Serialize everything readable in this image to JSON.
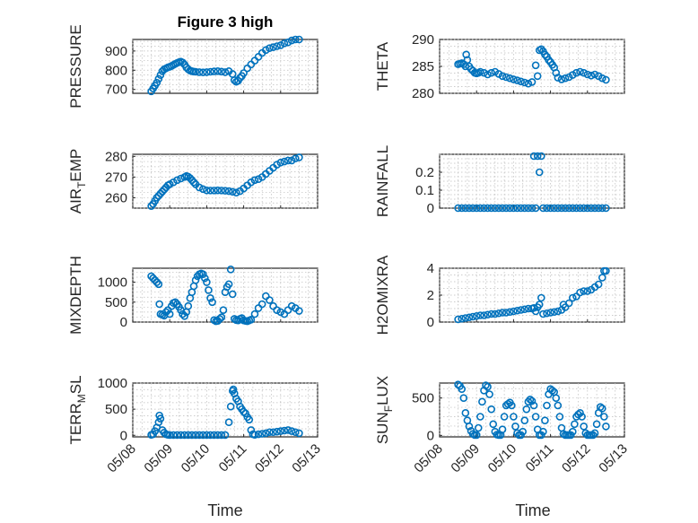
{
  "figure": {
    "title": "Figure 3 high",
    "marker_color": "#0072BD",
    "marker": "circle"
  },
  "chart_data": [
    {
      "type": "scatter",
      "title": "Figure 3 high",
      "ylabel": "PRESSURE",
      "ylim": [
        680,
        960
      ],
      "yticks": [
        700,
        800,
        900
      ],
      "xlim": [
        0,
        5
      ],
      "x": [
        0.5,
        0.55,
        0.6,
        0.65,
        0.7,
        0.75,
        0.8,
        0.85,
        0.9,
        0.95,
        1.0,
        1.05,
        1.1,
        1.15,
        1.2,
        1.25,
        1.3,
        1.35,
        1.4,
        1.45,
        1.5,
        1.55,
        1.6,
        1.65,
        1.7,
        1.8,
        1.9,
        2.0,
        2.1,
        2.2,
        2.3,
        2.4,
        2.5,
        2.6,
        2.7,
        2.75,
        2.8,
        2.85,
        2.9,
        2.95,
        3.0,
        3.1,
        3.2,
        3.3,
        3.4,
        3.5,
        3.6,
        3.7,
        3.8,
        3.9,
        4.0,
        4.1,
        4.2,
        4.3,
        4.4,
        4.5
      ],
      "y": [
        690,
        705,
        720,
        735,
        755,
        775,
        795,
        805,
        810,
        815,
        818,
        822,
        828,
        833,
        838,
        842,
        845,
        840,
        830,
        815,
        805,
        798,
        795,
        793,
        792,
        790,
        789,
        790,
        792,
        794,
        795,
        793,
        790,
        795,
        780,
        748,
        740,
        745,
        760,
        770,
        785,
        810,
        830,
        850,
        870,
        890,
        905,
        915,
        920,
        925,
        930,
        940,
        945,
        955,
        960,
        960
      ]
    },
    {
      "type": "scatter",
      "ylabel": "THETA",
      "ylim": [
        280,
        290
      ],
      "yticks": [
        280,
        285,
        290
      ],
      "xlim": [
        0,
        5
      ],
      "x": [
        0.5,
        0.55,
        0.6,
        0.65,
        0.7,
        0.72,
        0.75,
        0.8,
        0.85,
        0.9,
        0.95,
        1.0,
        1.05,
        1.1,
        1.2,
        1.3,
        1.4,
        1.5,
        1.6,
        1.7,
        1.8,
        1.9,
        2.0,
        2.1,
        2.2,
        2.3,
        2.4,
        2.5,
        2.6,
        2.65,
        2.7,
        2.75,
        2.8,
        2.85,
        2.9,
        2.95,
        3.0,
        3.05,
        3.1,
        3.15,
        3.2,
        3.3,
        3.4,
        3.5,
        3.6,
        3.7,
        3.8,
        3.9,
        4.0,
        4.1,
        4.2,
        4.3,
        4.4,
        4.5
      ],
      "y": [
        285.4,
        285.5,
        285.6,
        285.4,
        285.0,
        287.2,
        286.2,
        285.0,
        284.5,
        284.2,
        283.8,
        283.7,
        283.8,
        284.0,
        283.8,
        283.5,
        283.8,
        284.0,
        283.6,
        283.2,
        283.0,
        282.8,
        282.6,
        282.4,
        282.2,
        282.0,
        281.8,
        282.1,
        285.2,
        283.2,
        288.0,
        288.2,
        287.8,
        287.2,
        286.8,
        286.2,
        285.8,
        285.3,
        284.8,
        283.8,
        282.9,
        282.6,
        282.8,
        283.0,
        283.4,
        283.8,
        284.0,
        283.8,
        283.5,
        283.3,
        283.5,
        283.2,
        282.8,
        282.5
      ]
    },
    {
      "type": "scatter",
      "ylabel": "AIR_TEMP",
      "ylim": [
        255,
        281
      ],
      "yticks": [
        260,
        270,
        280
      ],
      "xlim": [
        0,
        5
      ],
      "x": [
        0.5,
        0.55,
        0.6,
        0.65,
        0.7,
        0.75,
        0.8,
        0.85,
        0.9,
        0.95,
        1.0,
        1.1,
        1.2,
        1.3,
        1.4,
        1.45,
        1.5,
        1.55,
        1.6,
        1.65,
        1.7,
        1.8,
        1.9,
        2.0,
        2.1,
        2.2,
        2.3,
        2.4,
        2.5,
        2.6,
        2.7,
        2.8,
        2.9,
        3.0,
        3.1,
        3.2,
        3.3,
        3.4,
        3.5,
        3.6,
        3.7,
        3.8,
        3.9,
        4.0,
        4.1,
        4.2,
        4.3,
        4.4,
        4.5
      ],
      "y": [
        256,
        257,
        258.5,
        260,
        261,
        262,
        263,
        264,
        265,
        266,
        266.5,
        267.5,
        268.5,
        269.3,
        270,
        270.5,
        270.2,
        269.5,
        268.5,
        267.5,
        266.5,
        265,
        264.2,
        263.6,
        263.5,
        263.5,
        263.6,
        263.5,
        263.4,
        263.2,
        262.9,
        262.5,
        263.2,
        264.5,
        266,
        267.5,
        268.5,
        269,
        270,
        271.5,
        273,
        274.5,
        276,
        277,
        277.5,
        278,
        278,
        279,
        279.5
      ]
    },
    {
      "type": "scatter",
      "ylabel": "RAINFALL",
      "ylim": [
        0,
        0.3
      ],
      "yticks": [
        0,
        0.1,
        0.2
      ],
      "xlim": [
        0,
        5
      ],
      "x": [
        0.5,
        0.6,
        0.7,
        0.8,
        0.9,
        1.0,
        1.1,
        1.2,
        1.3,
        1.4,
        1.5,
        1.6,
        1.7,
        1.8,
        1.9,
        2.0,
        2.1,
        2.2,
        2.3,
        2.4,
        2.5,
        2.55,
        2.6,
        2.65,
        2.7,
        2.75,
        2.8,
        2.9,
        3.0,
        3.1,
        3.2,
        3.3,
        3.4,
        3.5,
        3.6,
        3.7,
        3.8,
        3.9,
        4.0,
        4.1,
        4.2,
        4.3,
        4.4,
        4.5
      ],
      "y": [
        0,
        0,
        0,
        0,
        0,
        0,
        0,
        0,
        0,
        0,
        0,
        0,
        0,
        0,
        0,
        0,
        0,
        0,
        0,
        0,
        0,
        0.29,
        0,
        0.29,
        0.2,
        0.29,
        0,
        0,
        0,
        0,
        0,
        0,
        0,
        0,
        0,
        0,
        0,
        0,
        0,
        0,
        0,
        0,
        0,
        0
      ]
    },
    {
      "type": "scatter",
      "ylabel": "MIXDEPTH",
      "ylim": [
        0,
        1350
      ],
      "yticks": [
        0,
        500,
        1000
      ],
      "xlim": [
        0,
        5
      ],
      "x": [
        0.5,
        0.55,
        0.6,
        0.65,
        0.7,
        0.72,
        0.75,
        0.8,
        0.85,
        0.9,
        0.95,
        1.0,
        1.05,
        1.1,
        1.15,
        1.2,
        1.25,
        1.3,
        1.35,
        1.4,
        1.45,
        1.5,
        1.55,
        1.6,
        1.65,
        1.7,
        1.75,
        1.8,
        1.85,
        1.9,
        1.95,
        2.0,
        2.05,
        2.1,
        2.15,
        2.2,
        2.25,
        2.3,
        2.35,
        2.4,
        2.45,
        2.5,
        2.55,
        2.6,
        2.65,
        2.7,
        2.75,
        2.8,
        2.85,
        2.9,
        2.95,
        3.0,
        3.05,
        3.1,
        3.15,
        3.2,
        3.3,
        3.4,
        3.5,
        3.6,
        3.7,
        3.8,
        3.9,
        4.0,
        4.1,
        4.2,
        4.3,
        4.4,
        4.5
      ],
      "y": [
        1150,
        1100,
        1050,
        1000,
        950,
        450,
        200,
        180,
        160,
        250,
        300,
        200,
        400,
        480,
        500,
        450,
        380,
        300,
        200,
        150,
        250,
        400,
        600,
        750,
        900,
        1050,
        1150,
        1200,
        1220,
        1200,
        1100,
        1000,
        800,
        600,
        500,
        50,
        20,
        30,
        80,
        120,
        300,
        750,
        880,
        950,
        1320,
        700,
        80,
        50,
        40,
        80,
        100,
        40,
        30,
        20,
        40,
        60,
        200,
        350,
        450,
        650,
        550,
        400,
        300,
        250,
        200,
        300,
        400,
        350,
        280
      ]
    },
    {
      "type": "scatter",
      "ylabel": "H2OMIXRA",
      "ylim": [
        0,
        4
      ],
      "yticks": [
        0,
        2,
        4
      ],
      "xlim": [
        0,
        5
      ],
      "x": [
        0.5,
        0.6,
        0.7,
        0.8,
        0.9,
        1.0,
        1.1,
        1.2,
        1.3,
        1.4,
        1.5,
        1.6,
        1.7,
        1.8,
        1.9,
        2.0,
        2.1,
        2.2,
        2.3,
        2.4,
        2.5,
        2.55,
        2.6,
        2.65,
        2.7,
        2.75,
        2.8,
        2.9,
        3.0,
        3.1,
        3.2,
        3.3,
        3.35,
        3.4,
        3.5,
        3.6,
        3.7,
        3.8,
        3.9,
        4.0,
        4.1,
        4.2,
        4.3,
        4.4,
        4.45,
        4.5
      ],
      "y": [
        0.2,
        0.25,
        0.3,
        0.35,
        0.4,
        0.45,
        0.5,
        0.5,
        0.55,
        0.6,
        0.6,
        0.65,
        0.7,
        0.7,
        0.75,
        0.8,
        0.85,
        0.9,
        0.95,
        1.0,
        1.0,
        1.05,
        0.8,
        1.1,
        1.3,
        1.8,
        0.6,
        0.65,
        0.7,
        0.75,
        0.8,
        0.9,
        1.3,
        1.1,
        1.4,
        1.8,
        1.9,
        2.2,
        2.3,
        2.3,
        2.4,
        2.6,
        2.8,
        3.3,
        3.8,
        3.8
      ]
    },
    {
      "type": "scatter",
      "ylabel": "TERR_MSL",
      "ylim": [
        -30,
        1000
      ],
      "yticks": [
        0,
        500,
        1000
      ],
      "xlim": [
        0,
        5
      ],
      "x": [
        0.5,
        0.55,
        0.6,
        0.65,
        0.7,
        0.72,
        0.75,
        0.8,
        0.85,
        0.9,
        0.95,
        1.0,
        1.1,
        1.2,
        1.3,
        1.4,
        1.5,
        1.6,
        1.7,
        1.8,
        1.9,
        2.0,
        2.1,
        2.2,
        2.3,
        2.4,
        2.5,
        2.6,
        2.65,
        2.7,
        2.72,
        2.75,
        2.8,
        2.85,
        2.9,
        2.95,
        3.0,
        3.05,
        3.1,
        3.15,
        3.2,
        3.25,
        3.3,
        3.4,
        3.5,
        3.6,
        3.7,
        3.8,
        3.9,
        4.0,
        4.1,
        4.2,
        4.3,
        4.4,
        4.5
      ],
      "y": [
        10,
        20,
        80,
        150,
        250,
        380,
        320,
        100,
        50,
        20,
        10,
        5,
        5,
        5,
        5,
        5,
        5,
        5,
        5,
        5,
        5,
        5,
        5,
        5,
        5,
        5,
        5,
        250,
        550,
        850,
        880,
        800,
        700,
        650,
        550,
        500,
        450,
        420,
        350,
        300,
        100,
        20,
        10,
        20,
        30,
        40,
        60,
        60,
        70,
        80,
        90,
        100,
        80,
        60,
        40
      ]
    },
    {
      "type": "scatter",
      "ylabel": "SUN_FLUX",
      "ylim": [
        -20,
        700
      ],
      "yticks": [
        0,
        500
      ],
      "xlim": [
        0,
        5
      ],
      "x": [
        0.5,
        0.55,
        0.6,
        0.65,
        0.7,
        0.75,
        0.8,
        0.85,
        0.9,
        0.95,
        1.0,
        1.05,
        1.1,
        1.15,
        1.2,
        1.25,
        1.3,
        1.35,
        1.4,
        1.45,
        1.5,
        1.55,
        1.6,
        1.65,
        1.7,
        1.75,
        1.8,
        1.85,
        1.9,
        1.95,
        2.0,
        2.05,
        2.1,
        2.15,
        2.2,
        2.25,
        2.3,
        2.35,
        2.4,
        2.45,
        2.5,
        2.55,
        2.6,
        2.65,
        2.7,
        2.75,
        2.8,
        2.85,
        2.9,
        2.95,
        3.0,
        3.05,
        3.1,
        3.15,
        3.2,
        3.25,
        3.3,
        3.35,
        3.4,
        3.45,
        3.5,
        3.55,
        3.6,
        3.65,
        3.7,
        3.75,
        3.8,
        3.85,
        3.9,
        3.95,
        4.0,
        4.05,
        4.1,
        4.15,
        4.2,
        4.25,
        4.3,
        4.35,
        4.4,
        4.45,
        4.5
      ],
      "y": [
        680,
        660,
        620,
        500,
        300,
        200,
        120,
        60,
        20,
        5,
        5,
        100,
        250,
        450,
        600,
        670,
        650,
        550,
        350,
        150,
        50,
        10,
        5,
        5,
        80,
        250,
        400,
        420,
        440,
        400,
        250,
        120,
        30,
        5,
        5,
        50,
        200,
        350,
        450,
        480,
        460,
        400,
        250,
        80,
        5,
        5,
        50,
        200,
        400,
        550,
        620,
        600,
        580,
        500,
        400,
        250,
        100,
        20,
        5,
        5,
        5,
        5,
        50,
        150,
        250,
        280,
        300,
        250,
        120,
        30,
        5,
        5,
        5,
        5,
        30,
        150,
        300,
        380,
        360,
        250,
        120
      ]
    }
  ],
  "x_axis": {
    "label": "Time",
    "tick_labels": [
      "05/08",
      "05/09",
      "05/10",
      "05/11",
      "05/12",
      "05/13"
    ]
  }
}
